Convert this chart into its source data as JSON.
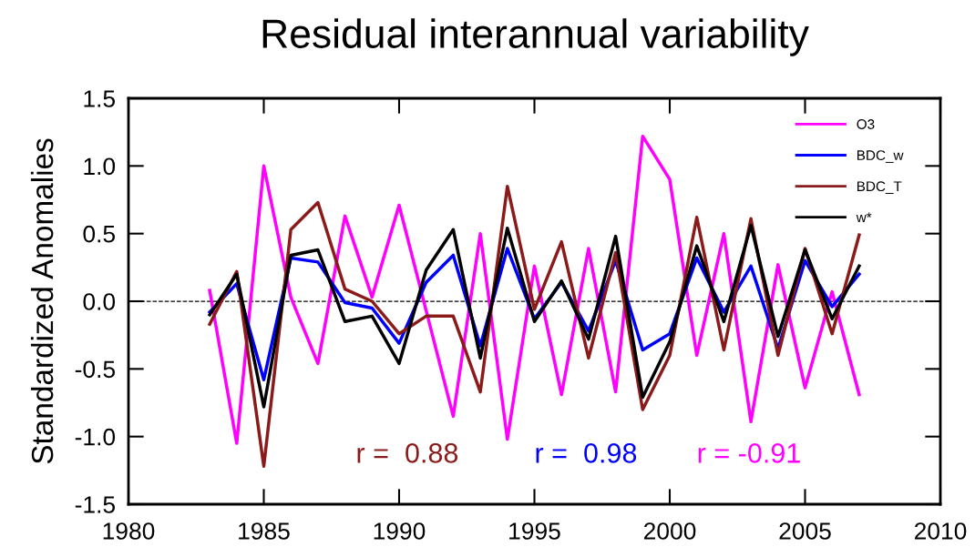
{
  "chart_data": {
    "type": "line",
    "title": "Residual interannual variability",
    "ylabel": "Standardized Anomalies",
    "x": [
      1983,
      1984,
      1985,
      1986,
      1987,
      1988,
      1989,
      1990,
      1991,
      1992,
      1993,
      1994,
      1995,
      1996,
      1997,
      1998,
      1999,
      2000,
      2001,
      2002,
      2003,
      2004,
      2005,
      2006,
      2007
    ],
    "series": [
      {
        "name": "O3",
        "color": "#ff00ff",
        "values": [
          0.08,
          -1.05,
          1.0,
          0.03,
          -0.46,
          0.63,
          0.03,
          0.71,
          -0.07,
          -0.85,
          0.5,
          -1.02,
          0.26,
          -0.69,
          0.39,
          -0.67,
          1.22,
          0.9,
          -0.4,
          0.5,
          -0.89,
          0.27,
          -0.64,
          0.07,
          -0.69
        ]
      },
      {
        "name": "BDC_w",
        "color": "#0000ff",
        "values": [
          -0.08,
          0.13,
          -0.58,
          0.32,
          0.29,
          -0.01,
          -0.05,
          -0.31,
          0.14,
          0.34,
          -0.33,
          0.39,
          -0.13,
          0.14,
          -0.22,
          0.3,
          -0.36,
          -0.24,
          0.32,
          -0.08,
          0.26,
          -0.35,
          0.3,
          -0.04,
          0.2
        ]
      },
      {
        "name": "BDC_T",
        "color": "#8b1a1a",
        "values": [
          -0.17,
          0.22,
          -1.22,
          0.53,
          0.73,
          0.09,
          0.0,
          -0.24,
          -0.11,
          -0.11,
          -0.67,
          0.85,
          -0.06,
          0.44,
          -0.42,
          0.36,
          -0.8,
          -0.4,
          0.62,
          -0.36,
          0.61,
          -0.4,
          0.39,
          -0.24,
          0.49
        ]
      },
      {
        "name": "w*",
        "color": "#000000",
        "values": [
          -0.1,
          0.2,
          -0.78,
          0.34,
          0.38,
          -0.15,
          -0.11,
          -0.46,
          0.23,
          0.53,
          -0.42,
          0.54,
          -0.15,
          0.15,
          -0.28,
          0.48,
          -0.71,
          -0.3,
          0.41,
          -0.15,
          0.56,
          -0.26,
          0.38,
          -0.13,
          0.26
        ]
      }
    ],
    "xlim": [
      1980,
      2010
    ],
    "xticks": [
      1980,
      1985,
      1990,
      1995,
      2000,
      2005,
      2010
    ],
    "ylim": [
      -1.5,
      1.5
    ],
    "yticks": [
      {
        "value": -1.5,
        "label": "-1.5"
      },
      {
        "value": -1.0,
        "label": "-1.0"
      },
      {
        "value": -0.5,
        "label": "-0.5"
      },
      {
        "value": 0,
        "label": "0.0"
      },
      {
        "value": 0.5,
        "label": "0.5"
      },
      {
        "value": 1.0,
        "label": "1.0"
      },
      {
        "value": 1.5,
        "label": "1.5"
      }
    ],
    "ref_lines": [
      {
        "axis": "y",
        "value": 0,
        "color": "#000000",
        "line_style": "dashed"
      }
    ],
    "annotations": [
      "r =  0.88",
      "r =  0.98",
      "r = -0.91"
    ],
    "legend": "top right",
    "grid": false,
    "marker": "none",
    "line_style": "solid"
  }
}
